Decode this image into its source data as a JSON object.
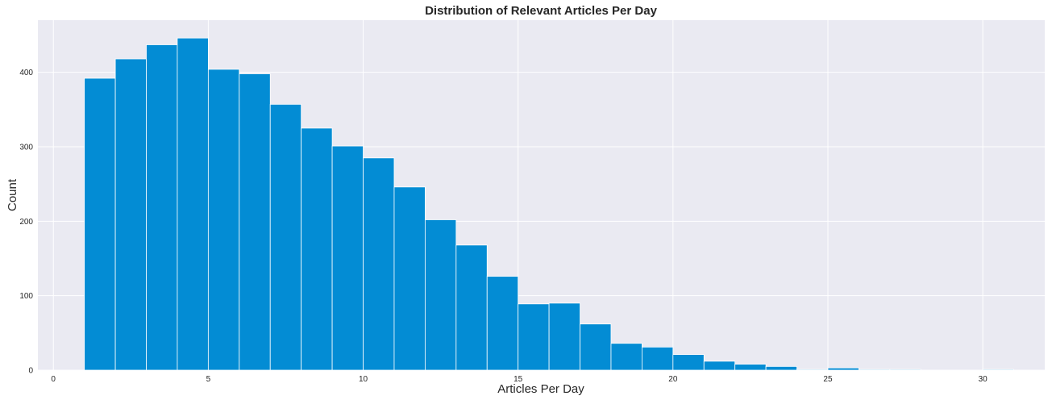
{
  "colors": {
    "plot_background": "#eaeaf2",
    "grid": "#ffffff",
    "bar": "#038cd4",
    "bar_edge": "#ffffff"
  },
  "chart_data": {
    "type": "bar",
    "title": "Distribution of Relevant Articles Per Day",
    "xlabel": "Articles Per Day",
    "ylabel": "Count",
    "xlim": [
      -0.5,
      32.0
    ],
    "ylim": [
      0,
      470
    ],
    "grid": true,
    "xticks": [
      0,
      5,
      10,
      15,
      20,
      25,
      30
    ],
    "yticks": [
      0,
      100,
      200,
      300,
      400
    ],
    "bins": [
      {
        "x0": 1,
        "x1": 2,
        "value": 392
      },
      {
        "x0": 2,
        "x1": 3,
        "value": 418
      },
      {
        "x0": 3,
        "x1": 4,
        "value": 437
      },
      {
        "x0": 4,
        "x1": 5,
        "value": 446
      },
      {
        "x0": 5,
        "x1": 6,
        "value": 404
      },
      {
        "x0": 6,
        "x1": 7,
        "value": 398
      },
      {
        "x0": 7,
        "x1": 8,
        "value": 357
      },
      {
        "x0": 8,
        "x1": 9,
        "value": 325
      },
      {
        "x0": 9,
        "x1": 10,
        "value": 301
      },
      {
        "x0": 10,
        "x1": 11,
        "value": 285
      },
      {
        "x0": 11,
        "x1": 12,
        "value": 246
      },
      {
        "x0": 12,
        "x1": 13,
        "value": 202
      },
      {
        "x0": 13,
        "x1": 14,
        "value": 168
      },
      {
        "x0": 14,
        "x1": 15,
        "value": 126
      },
      {
        "x0": 15,
        "x1": 16,
        "value": 89
      },
      {
        "x0": 16,
        "x1": 17,
        "value": 90
      },
      {
        "x0": 17,
        "x1": 18,
        "value": 62
      },
      {
        "x0": 18,
        "x1": 19,
        "value": 36
      },
      {
        "x0": 19,
        "x1": 20,
        "value": 31
      },
      {
        "x0": 20,
        "x1": 21,
        "value": 21
      },
      {
        "x0": 21,
        "x1": 22,
        "value": 12
      },
      {
        "x0": 22,
        "x1": 23,
        "value": 8
      },
      {
        "x0": 23,
        "x1": 24,
        "value": 5
      },
      {
        "x0": 24,
        "x1": 25,
        "value": 1
      },
      {
        "x0": 25,
        "x1": 26,
        "value": 3
      },
      {
        "x0": 26,
        "x1": 27,
        "value": 1
      },
      {
        "x0": 27,
        "x1": 28,
        "value": 1
      },
      {
        "x0": 28,
        "x1": 29,
        "value": 0
      },
      {
        "x0": 29,
        "x1": 30,
        "value": 0
      },
      {
        "x0": 30,
        "x1": 31,
        "value": 1
      }
    ]
  }
}
